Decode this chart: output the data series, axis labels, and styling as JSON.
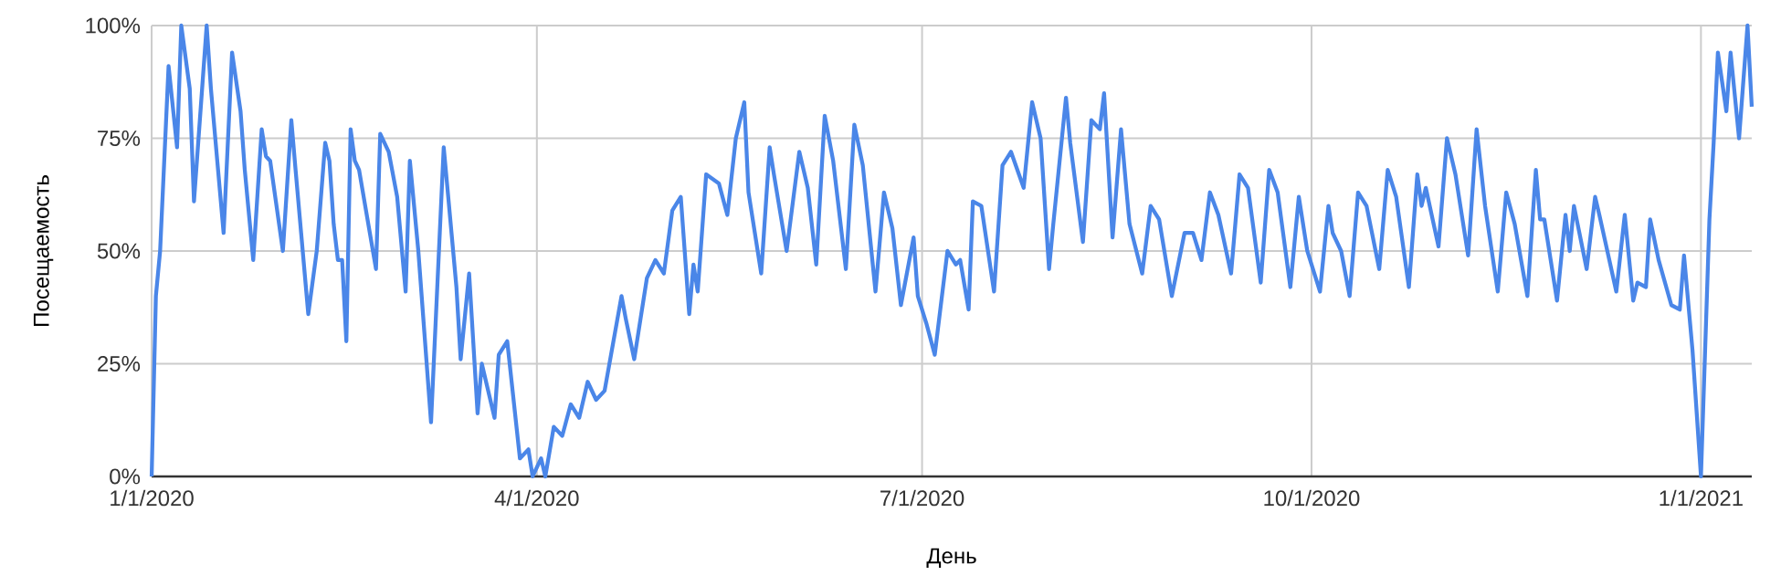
{
  "chart_data": {
    "type": "line",
    "xlabel": "День",
    "ylabel": "Посещаемость",
    "x": [
      "2020-01-01",
      "2020-01-02",
      "2020-01-03",
      "2020-01-05",
      "2020-01-07",
      "2020-01-08",
      "2020-01-10",
      "2020-01-11",
      "2020-01-14",
      "2020-01-15",
      "2020-01-18",
      "2020-01-20",
      "2020-01-22",
      "2020-01-23",
      "2020-01-25",
      "2020-01-27",
      "2020-01-28",
      "2020-01-29",
      "2020-02-01",
      "2020-02-03",
      "2020-02-04",
      "2020-02-07",
      "2020-02-09",
      "2020-02-11",
      "2020-02-12",
      "2020-02-13",
      "2020-02-14",
      "2020-02-15",
      "2020-02-16",
      "2020-02-17",
      "2020-02-18",
      "2020-02-19",
      "2020-02-23",
      "2020-02-24",
      "2020-02-26",
      "2020-02-28",
      "2020-03-01",
      "2020-03-02",
      "2020-03-04",
      "2020-03-07",
      "2020-03-10",
      "2020-03-13",
      "2020-03-14",
      "2020-03-16",
      "2020-03-18",
      "2020-03-19",
      "2020-03-22",
      "2020-03-23",
      "2020-03-25",
      "2020-03-28",
      "2020-03-30",
      "2020-03-31",
      "2020-04-02",
      "2020-04-03",
      "2020-04-05",
      "2020-04-07",
      "2020-04-09",
      "2020-04-11",
      "2020-04-13",
      "2020-04-15",
      "2020-04-17",
      "2020-04-21",
      "2020-04-22",
      "2020-04-24",
      "2020-04-27",
      "2020-04-29",
      "2020-05-01",
      "2020-05-03",
      "2020-05-05",
      "2020-05-07",
      "2020-05-08",
      "2020-05-09",
      "2020-05-11",
      "2020-05-14",
      "2020-05-16",
      "2020-05-18",
      "2020-05-20",
      "2020-05-21",
      "2020-05-24",
      "2020-05-26",
      "2020-05-27",
      "2020-05-30",
      "2020-06-02",
      "2020-06-04",
      "2020-06-06",
      "2020-06-08",
      "2020-06-10",
      "2020-06-13",
      "2020-06-15",
      "2020-06-17",
      "2020-06-20",
      "2020-06-22",
      "2020-06-24",
      "2020-06-26",
      "2020-06-29",
      "2020-06-30",
      "2020-07-02",
      "2020-07-04",
      "2020-07-07",
      "2020-07-09",
      "2020-07-10",
      "2020-07-12",
      "2020-07-13",
      "2020-07-15",
      "2020-07-18",
      "2020-07-20",
      "2020-07-22",
      "2020-07-25",
      "2020-07-27",
      "2020-07-29",
      "2020-07-31",
      "2020-08-01",
      "2020-08-04",
      "2020-08-05",
      "2020-08-08",
      "2020-08-10",
      "2020-08-12",
      "2020-08-13",
      "2020-08-15",
      "2020-08-17",
      "2020-08-19",
      "2020-08-22",
      "2020-08-24",
      "2020-08-26",
      "2020-08-29",
      "2020-09-01",
      "2020-09-03",
      "2020-09-05",
      "2020-09-07",
      "2020-09-09",
      "2020-09-12",
      "2020-09-14",
      "2020-09-16",
      "2020-09-19",
      "2020-09-21",
      "2020-09-23",
      "2020-09-26",
      "2020-09-28",
      "2020-09-30",
      "2020-10-03",
      "2020-10-05",
      "2020-10-06",
      "2020-10-08",
      "2020-10-10",
      "2020-10-12",
      "2020-10-14",
      "2020-10-17",
      "2020-10-19",
      "2020-10-21",
      "2020-10-24",
      "2020-10-26",
      "2020-10-27",
      "2020-10-28",
      "2020-10-31",
      "2020-11-02",
      "2020-11-04",
      "2020-11-07",
      "2020-11-09",
      "2020-11-11",
      "2020-11-14",
      "2020-11-16",
      "2020-11-18",
      "2020-11-21",
      "2020-11-23",
      "2020-11-24",
      "2020-11-25",
      "2020-11-28",
      "2020-11-30",
      "2020-12-01",
      "2020-12-02",
      "2020-12-05",
      "2020-12-07",
      "2020-12-08",
      "2020-12-12",
      "2020-12-14",
      "2020-12-16",
      "2020-12-17",
      "2020-12-19",
      "2020-12-20",
      "2020-12-22",
      "2020-12-25",
      "2020-12-27",
      "2020-12-28",
      "2020-12-30",
      "2021-01-01",
      "2021-01-03",
      "2021-01-04",
      "2021-01-05",
      "2021-01-07",
      "2021-01-08",
      "2021-01-10",
      "2021-01-12",
      "2021-01-13"
    ],
    "series": [
      {
        "color": "#4a86e8",
        "values": [
          0,
          40,
          50,
          91,
          73,
          100,
          86,
          61,
          100,
          86,
          54,
          94,
          81,
          68,
          48,
          77,
          71,
          70,
          50,
          79,
          68,
          36,
          50,
          74,
          70,
          56,
          48,
          48,
          30,
          77,
          70,
          68,
          46,
          76,
          72,
          62,
          41,
          70,
          50,
          12,
          73,
          42,
          26,
          45,
          14,
          25,
          13,
          27,
          30,
          4,
          6,
          0,
          4,
          0,
          11,
          9,
          16,
          13,
          21,
          17,
          19,
          40,
          35,
          26,
          44,
          48,
          45,
          59,
          62,
          36,
          47,
          41,
          67,
          65,
          58,
          75,
          83,
          63,
          45,
          73,
          67,
          50,
          72,
          64,
          47,
          80,
          70,
          46,
          78,
          69,
          41,
          63,
          55,
          38,
          53,
          40,
          34,
          27,
          50,
          47,
          48,
          37,
          61,
          60,
          41,
          69,
          72,
          64,
          83,
          75,
          46,
          56,
          84,
          74,
          52,
          79,
          77,
          85,
          53,
          77,
          56,
          45,
          60,
          57,
          40,
          54,
          54,
          48,
          63,
          58,
          45,
          67,
          64,
          43,
          68,
          63,
          42,
          62,
          50,
          41,
          60,
          54,
          50,
          40,
          63,
          60,
          46,
          68,
          62,
          42,
          67,
          60,
          64,
          51,
          75,
          67,
          49,
          77,
          60,
          41,
          63,
          56,
          40,
          68,
          57,
          57,
          39,
          58,
          50,
          60,
          46,
          62,
          58,
          41,
          58,
          39,
          43,
          42,
          57,
          48,
          38,
          37,
          49,
          28,
          0,
          57,
          74,
          94,
          81,
          94,
          75,
          100,
          82
        ]
      }
    ],
    "xlim": [
      "2020-01-01",
      "2021-01-13"
    ],
    "xticks": [
      {
        "value": "2020-01-01",
        "label": "1/1/2020"
      },
      {
        "value": "2020-04-01",
        "label": "4/1/2020"
      },
      {
        "value": "2020-07-01",
        "label": "7/1/2020"
      },
      {
        "value": "2020-10-01",
        "label": "10/1/2020"
      },
      {
        "value": "2021-01-01",
        "label": "1/1/2021"
      }
    ],
    "ylim": [
      0,
      100
    ],
    "yticks": [
      {
        "value": 0,
        "label": "0%"
      },
      {
        "value": 25,
        "label": "25%"
      },
      {
        "value": 50,
        "label": "50%"
      },
      {
        "value": 75,
        "label": "75%"
      },
      {
        "value": 100,
        "label": "100%"
      }
    ],
    "grid": true,
    "marker": "none",
    "line_style": "solid"
  }
}
